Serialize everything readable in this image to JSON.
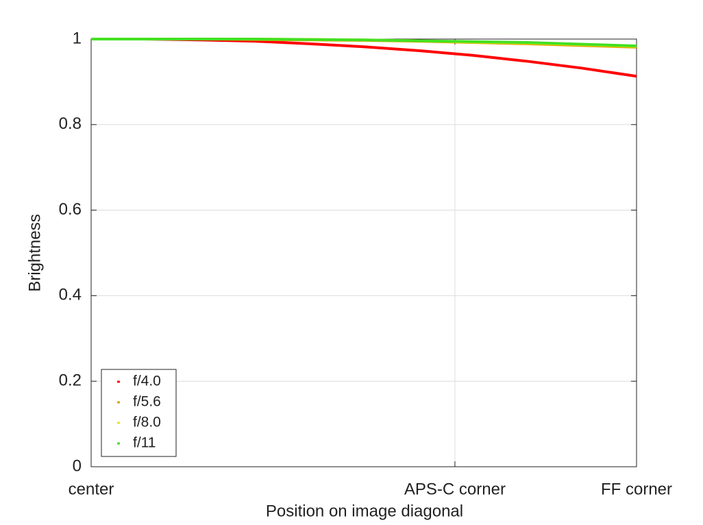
{
  "chart_data": {
    "type": "line",
    "xlabel": "Position on image diagonal",
    "ylabel": "Brightness",
    "x": [
      0,
      0.1,
      0.2,
      0.3,
      0.4,
      0.5,
      0.6,
      0.7,
      0.8,
      0.9,
      1.0
    ],
    "series": [
      {
        "name": "f/4.0",
        "color": "#ff0000",
        "values": [
          1,
          1,
          0.998,
          0.995,
          0.989,
          0.982,
          0.973,
          0.962,
          0.948,
          0.932,
          0.913
        ]
      },
      {
        "name": "f/5.6",
        "color": "#e0a000",
        "values": [
          1,
          1,
          1,
          0.999,
          0.998,
          0.997,
          0.995,
          0.992,
          0.989,
          0.985,
          0.981
        ]
      },
      {
        "name": "f/8.0",
        "color": "#e8e800",
        "values": [
          1,
          1,
          1,
          1,
          0.999,
          0.998,
          0.996,
          0.993,
          0.991,
          0.987,
          0.983
        ]
      },
      {
        "name": "f/11",
        "color": "#44e022",
        "values": [
          1,
          1,
          1,
          1,
          0.999,
          0.998,
          0.996,
          0.994,
          0.992,
          0.988,
          0.984
        ]
      }
    ],
    "xlim": [
      0,
      1
    ],
    "xticks": [
      {
        "value": 0,
        "label": "center"
      },
      {
        "value": 0.667,
        "label": "APS-C corner"
      },
      {
        "value": 1,
        "label": "FF corner"
      }
    ],
    "ylim": [
      0,
      1
    ],
    "yticks": [
      0,
      0.2,
      0.4,
      0.6,
      0.8,
      1
    ],
    "grid": true,
    "legend": "lower left"
  }
}
